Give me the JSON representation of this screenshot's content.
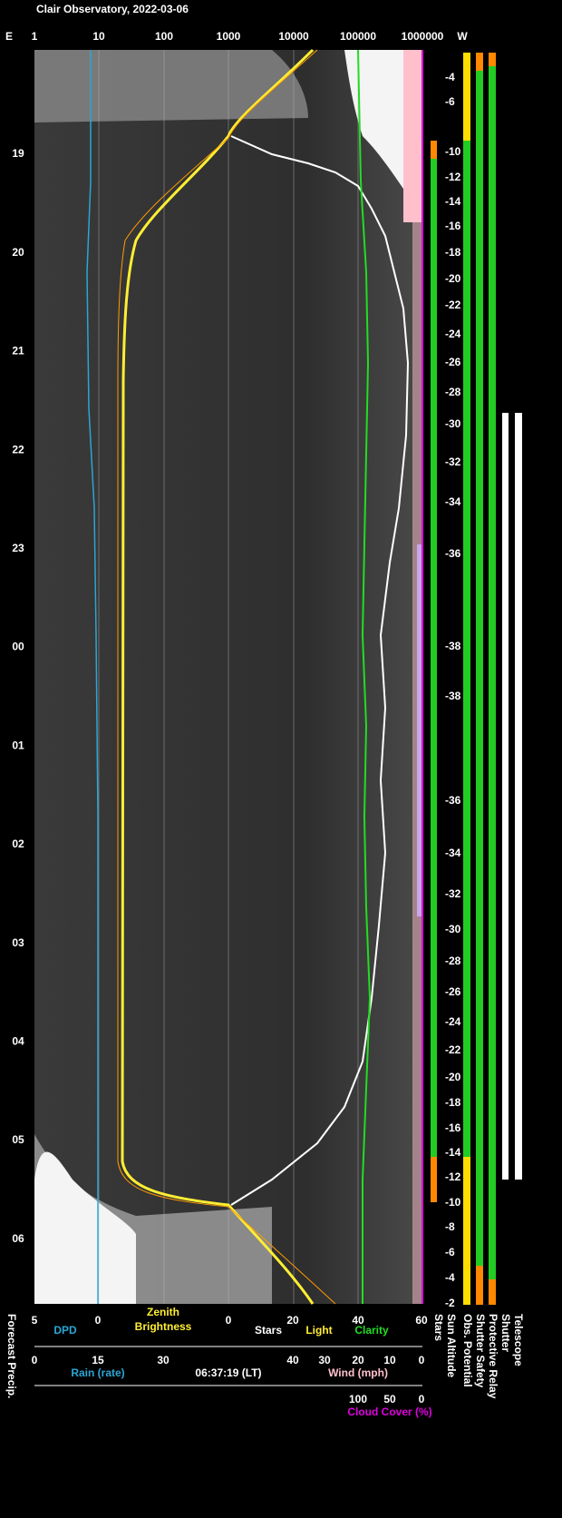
{
  "header": {
    "title": "Clair Observatory, 2022-03-06"
  },
  "top_axis": {
    "east": "E",
    "west": "W",
    "ticks": [
      1,
      10,
      100,
      1000,
      10000,
      100000,
      1000000
    ]
  },
  "hours": [
    "19",
    "20",
    "21",
    "22",
    "23",
    "00",
    "01",
    "02",
    "03",
    "04",
    "05",
    "06"
  ],
  "sun_altitude": [
    -4,
    -6,
    -10,
    -12,
    -14,
    -16,
    -18,
    -20,
    -22,
    -24,
    -26,
    -28,
    -30,
    -32,
    -34,
    -36,
    -38,
    -38,
    -36,
    -34,
    -32,
    -30,
    -28,
    -26,
    -24,
    -22,
    -20,
    -18,
    -16,
    -14,
    -12,
    -10,
    -8,
    -6,
    -4,
    -2
  ],
  "bottom_axes": {
    "dpd": {
      "label": "DPD",
      "ticks": [
        5,
        0
      ]
    },
    "zenith": {
      "label_1": "Zenith",
      "label_2": "Brightness"
    },
    "stars_light_clarity": {
      "ticks": [
        0,
        20,
        40,
        60
      ],
      "labels": [
        "Stars",
        "Light",
        "Clarity"
      ]
    },
    "rain": {
      "label": "Rain (rate)",
      "ticks": [
        0,
        15,
        30
      ]
    },
    "timestamp": "06:37:19 (LT)",
    "wind": {
      "label": "Wind (mph)",
      "ticks": [
        40,
        30,
        20,
        10,
        0
      ]
    },
    "cloud": {
      "label": "Cloud Cover (%)",
      "ticks": [
        100,
        50,
        0
      ]
    },
    "forecast": "Forecast Precip."
  },
  "side_labels": [
    "Stars",
    "Sun Altitude",
    "Obs. Potential",
    "Shutter Safety",
    "Protective Relay",
    "Shutter",
    "Telescope"
  ]
}
